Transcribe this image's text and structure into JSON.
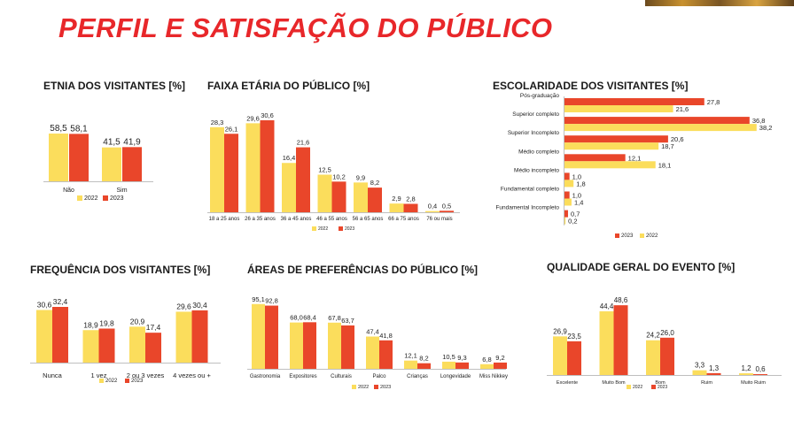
{
  "page": {
    "title": "PERFIL E SATISFAÇÃO DO PÚBLICO"
  },
  "colors": {
    "y2022": "#fbdd5c",
    "y2023": "#e9462a",
    "title": "#e8272a"
  },
  "chart_data": [
    {
      "id": "etnia",
      "type": "bar",
      "title": "ETNIA DOS VISITANTES [%]",
      "categories": [
        "Não",
        "Sim"
      ],
      "series": [
        {
          "name": "2022",
          "values": [
            "58,5",
            "41,5"
          ]
        },
        {
          "name": "2023",
          "values": [
            "58,1",
            "41,9"
          ]
        }
      ],
      "ylim": [
        0,
        65
      ],
      "legend": "bottom",
      "grid": false
    },
    {
      "id": "faixa",
      "type": "bar",
      "title": "FAIXA ETÁRIA DO PÚBLICO  [%]",
      "categories": [
        "18 a 25 anos",
        "26 a 35 anos",
        "36 a 45 anos",
        "46 a 55 anos",
        "56 a 65 anos",
        "66 a 75 anos",
        "76 ou mais"
      ],
      "series": [
        {
          "name": "2022",
          "values": [
            "28,3",
            "29,6",
            "16,4",
            "12,5",
            "9,9",
            "2,9",
            "0,4"
          ]
        },
        {
          "name": "2023",
          "values": [
            "26,1",
            "30,6",
            "21,6",
            "10,2",
            "8,2",
            "2,8",
            "0,5"
          ]
        }
      ],
      "ylim": [
        0,
        35
      ],
      "legend": "bottom",
      "grid": false
    },
    {
      "id": "escolaridade",
      "type": "bar",
      "orientation": "horizontal",
      "title": "ESCOLARIDADE DOS VISITANTES [%]",
      "categories": [
        "Pós-graduação",
        "Superior completo",
        "Superior Incompleto",
        "Médio completo",
        "Médio incompleto",
        "Fundamental completo",
        "Fundamental Incompleto"
      ],
      "series": [
        {
          "name": "2023",
          "values": [
            "27,8",
            "36,8",
            "20,6",
            "12,1",
            "1,0",
            "1,0",
            "0,7"
          ]
        },
        {
          "name": "2022",
          "values": [
            "21,6",
            "38,2",
            "18,7",
            "18,1",
            "1,8",
            "1,4",
            "0,2"
          ]
        }
      ],
      "xlim": [
        0,
        40
      ],
      "legend": "bottom",
      "grid": false
    },
    {
      "id": "frequencia",
      "type": "bar",
      "title": "FREQUÊNCIA DOS VISITANTES [%]",
      "categories": [
        "Nunca",
        "1 vez",
        "2 ou 3 vezes",
        "4 vezes ou +"
      ],
      "series": [
        {
          "name": "2022",
          "values": [
            "30,6",
            "18,9",
            "20,9",
            "29,6"
          ]
        },
        {
          "name": "2023",
          "values": [
            "32,4",
            "19,8",
            "17,4",
            "30,4"
          ]
        }
      ],
      "ylim": [
        0,
        36
      ],
      "legend": "bottom",
      "grid": false
    },
    {
      "id": "areas",
      "type": "bar",
      "title": "ÁREAS DE PREFERÊNCIAS  DO PÚBLICO [%]",
      "categories": [
        "Gastronomia",
        "Expositores",
        "Culturais",
        "Palco",
        "Crianças",
        "Longevidade",
        "Miss Nikkey"
      ],
      "series": [
        {
          "name": "2022",
          "values": [
            "95,1",
            "68,0",
            "67,8",
            "47,4",
            "12,1",
            "10,5",
            "6,8"
          ]
        },
        {
          "name": "2023",
          "values": [
            "92,8",
            "68,4",
            "63,7",
            "41,8",
            "8,2",
            "9,3",
            "9,2"
          ]
        }
      ],
      "ylim": [
        0,
        100
      ],
      "legend": "bottom",
      "grid": false
    },
    {
      "id": "qualidade",
      "type": "bar",
      "title": "QUALIDADE GERAL DO EVENTO [%]",
      "categories": [
        "Excelente",
        "Muito Bom",
        "Bom",
        "Ruim",
        "Muito Ruim"
      ],
      "series": [
        {
          "name": "2022",
          "values": [
            "26,9",
            "44,4",
            "24,2",
            "3,3",
            "1,2"
          ]
        },
        {
          "name": "2023",
          "values": [
            "23,5",
            "48,6",
            "26,0",
            "1,3",
            "0,6"
          ]
        }
      ],
      "ylim": [
        0,
        53
      ],
      "legend": "bottom",
      "grid": false
    }
  ]
}
